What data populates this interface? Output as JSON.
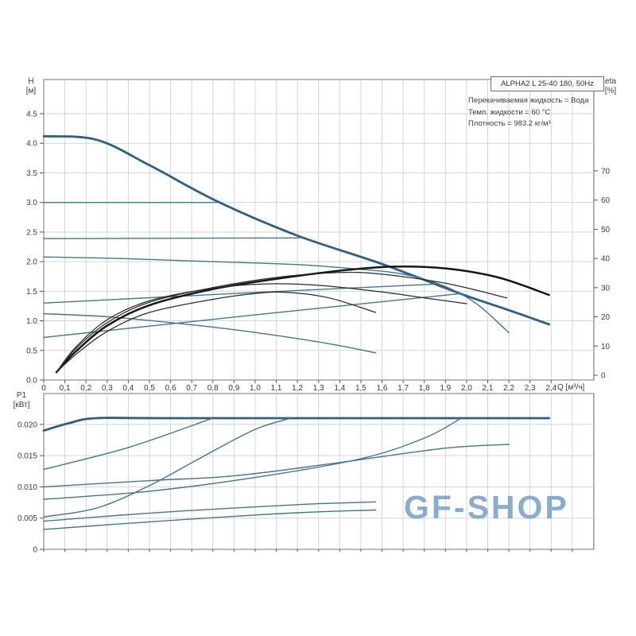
{
  "header": {
    "title": "ALPHA2 L 25-40 180, 50Hz",
    "info": [
      "Перекачиваемая жидкость = Вода",
      "Темп. жидкости = 60 °C",
      "Плотность = 983.2 кг/м³"
    ]
  },
  "axes": {
    "h_label": "H",
    "h_unit": "[м]",
    "eta_label": "eta",
    "eta_unit": "[%]",
    "p1_label": "P1",
    "p1_unit": "[кВт]",
    "q_label": "Q [м³/ч]"
  },
  "watermark": {
    "text": "GF-SHOP"
  },
  "colors": {
    "blue_thick": "#2e6084",
    "blue": "#46748f",
    "black_thick": "#161616",
    "black": "#2b2b2b",
    "grid": "#d5d5d5",
    "border": "#8c8c8c",
    "tick_text": "#3a3a3a",
    "watermark": "#6d9cc7"
  },
  "chart_data": [
    {
      "type": "line",
      "title": "ALPHA2 L 25-40 180, 50Hz",
      "xlabel": "Q [м³/ч]",
      "ylabel": "H [м]",
      "y2label": "eta [%]",
      "xlim": [
        0,
        2.602
      ],
      "ylim": [
        0,
        5.078
      ],
      "y2lim": [
        -1.634,
        101.3
      ],
      "grid": true,
      "x_ticks": [
        0,
        0.1,
        0.2,
        0.3,
        0.4,
        0.5,
        0.6,
        0.7,
        0.8,
        0.9,
        1.0,
        1.1,
        1.2,
        1.3,
        1.4,
        1.5,
        1.6,
        1.7,
        1.8,
        1.9,
        2.0,
        2.1,
        2.2,
        2.3,
        2.4
      ],
      "x_tick_labels": [
        "0",
        "0,1",
        "0,2",
        "0,3",
        "0,4",
        "0,5",
        "0,6",
        "0,7",
        "0,8",
        "0,9",
        "1,0",
        "1,1",
        "1,2",
        "1,3",
        "1,4",
        "1,5",
        "1,6",
        "1,7",
        "1,8",
        "1,9",
        "2,0",
        "2,1",
        "2,2",
        "2,3",
        "2,4"
      ],
      "x_grid_step": 0.1,
      "y_ticks": [
        0,
        0.5,
        1,
        1.5,
        2,
        2.5,
        3,
        3.5,
        4,
        4.5
      ],
      "y_tick_labels": [
        "0.0",
        "0.5",
        "1.0",
        "1.5",
        "2.0",
        "2.5",
        "3.0",
        "3.5",
        "4.0",
        "4.5"
      ],
      "y2_ticks": [
        0,
        10,
        20,
        30,
        40,
        50,
        60,
        70
      ],
      "y2_tick_labels": [
        "0",
        "10",
        "20",
        "30",
        "40",
        "50",
        "60",
        "70"
      ],
      "series": [
        {
          "name": "speed-3-max-curve",
          "axis": "y",
          "style": "blue_thick",
          "points": [
            [
              0,
              4.12
            ],
            [
              0.25,
              4.06
            ],
            [
              0.5,
              3.63
            ],
            [
              0.82,
              3.02
            ],
            [
              1.2,
              2.44
            ],
            [
              1.6,
              1.96
            ],
            [
              1.97,
              1.46
            ],
            [
              2.2,
              1.18
            ],
            [
              2.39,
              0.94
            ]
          ]
        },
        {
          "name": "const-pressure-3.0",
          "axis": "y",
          "style": "blue",
          "points": [
            [
              0,
              3.0
            ],
            [
              0.82,
              3.0
            ]
          ]
        },
        {
          "name": "const-pressure-2.4",
          "axis": "y",
          "style": "blue",
          "points": [
            [
              0,
              2.39
            ],
            [
              1.21,
              2.4
            ]
          ]
        },
        {
          "name": "speed-2-curve",
          "axis": "y",
          "style": "blue",
          "points": [
            [
              0,
              2.08
            ],
            [
              0.4,
              2.05
            ],
            [
              0.8,
              2.0
            ],
            [
              1.2,
              1.95
            ],
            [
              1.5,
              1.87
            ],
            [
              1.7,
              1.79
            ],
            [
              1.9,
              1.58
            ],
            [
              2.05,
              1.28
            ],
            [
              2.2,
              0.8
            ]
          ]
        },
        {
          "name": "prop-pressure-upper",
          "axis": "y",
          "style": "blue",
          "points": [
            [
              0,
              1.3
            ],
            [
              0.95,
              1.47
            ],
            [
              1.85,
              1.62
            ]
          ]
        },
        {
          "name": "speed-1-curve",
          "axis": "y",
          "style": "blue",
          "points": [
            [
              0,
              1.12
            ],
            [
              0.3,
              1.07
            ],
            [
              0.6,
              0.97
            ],
            [
              0.9,
              0.85
            ],
            [
              1.2,
              0.7
            ],
            [
              1.4,
              0.58
            ],
            [
              1.57,
              0.46
            ]
          ]
        },
        {
          "name": "prop-pressure-lower",
          "axis": "y",
          "style": "blue",
          "points": [
            [
              0,
              0.72
            ],
            [
              1.0,
              1.1
            ],
            [
              1.97,
              1.46
            ]
          ]
        },
        {
          "name": "eta-speed-3",
          "axis": "y2",
          "style": "black_thick",
          "points": [
            [
              0.06,
              1
            ],
            [
              0.15,
              8
            ],
            [
              0.3,
              17
            ],
            [
              0.5,
              24
            ],
            [
              0.8,
              29.5
            ],
            [
              1.1,
              33
            ],
            [
              1.4,
              35.8
            ],
            [
              1.65,
              37.2
            ],
            [
              1.9,
              36.6
            ],
            [
              2.15,
              33.5
            ],
            [
              2.39,
              27.5
            ]
          ]
        },
        {
          "name": "eta-speed-2",
          "axis": "y2",
          "style": "black",
          "points": [
            [
              0.06,
              1
            ],
            [
              0.15,
              9
            ],
            [
              0.3,
              18
            ],
            [
              0.5,
              25
            ],
            [
              0.8,
              30
            ],
            [
              1.1,
              33.5
            ],
            [
              1.4,
              35.2
            ],
            [
              1.6,
              34.6
            ],
            [
              1.9,
              31.5
            ],
            [
              2.19,
              26.5
            ]
          ]
        },
        {
          "name": "eta-mid",
          "axis": "y2",
          "style": "black",
          "points": [
            [
              0.06,
              1
            ],
            [
              0.15,
              9.5
            ],
            [
              0.3,
              19
            ],
            [
              0.5,
              25.5
            ],
            [
              0.8,
              29.8
            ],
            [
              1.05,
              31.3
            ],
            [
              1.3,
              30.8
            ],
            [
              1.6,
              28.5
            ],
            [
              1.8,
              26.5
            ],
            [
              2.0,
              24.5
            ]
          ]
        },
        {
          "name": "eta-speed-1",
          "axis": "y2",
          "style": "black",
          "points": [
            [
              0.06,
              1
            ],
            [
              0.15,
              7
            ],
            [
              0.3,
              15
            ],
            [
              0.5,
              21.5
            ],
            [
              0.8,
              26
            ],
            [
              1.0,
              28
            ],
            [
              1.15,
              28.4
            ],
            [
              1.35,
              26.5
            ],
            [
              1.57,
              21.5
            ]
          ]
        }
      ]
    },
    {
      "type": "line",
      "ylabel": "P1 [кВт]",
      "xlim": [
        0,
        2.602
      ],
      "ylim": [
        0,
        0.02494
      ],
      "grid": true,
      "x_grid_step": 0.1,
      "y_ticks": [
        0,
        0.005,
        0.01,
        0.015,
        0.02
      ],
      "y_tick_labels": [
        "0",
        "0.005",
        "0.010",
        "0.015",
        "0.020"
      ],
      "series": [
        {
          "name": "p1-speed-3",
          "axis": "y",
          "style": "blue_thick",
          "points": [
            [
              0,
              0.019
            ],
            [
              0.12,
              0.0202
            ],
            [
              0.25,
              0.021
            ],
            [
              0.6,
              0.021
            ],
            [
              2.39,
              0.021
            ]
          ]
        },
        {
          "name": "p1-const-pressure-3.0",
          "axis": "y",
          "style": "blue",
          "points": [
            [
              0,
              0.0128
            ],
            [
              0.4,
              0.0163
            ],
            [
              0.8,
              0.021
            ]
          ]
        },
        {
          "name": "p1-speed-2",
          "axis": "y",
          "style": "blue",
          "points": [
            [
              0,
              0.01
            ],
            [
              0.5,
              0.011
            ],
            [
              0.91,
              0.0118
            ],
            [
              1.4,
              0.0139
            ],
            [
              1.9,
              0.0162
            ],
            [
              2.2,
              0.0168
            ]
          ]
        },
        {
          "name": "p1-prop-pressure",
          "axis": "y",
          "style": "blue",
          "points": [
            [
              0,
              0.008
            ],
            [
              0.5,
              0.0093
            ],
            [
              1.0,
              0.0115
            ],
            [
              1.5,
              0.0145
            ],
            [
              1.8,
              0.0178
            ],
            [
              1.97,
              0.0209
            ]
          ]
        },
        {
          "name": "p1-const-pressure-2.4",
          "axis": "y",
          "style": "blue",
          "points": [
            [
              0,
              0.0052
            ],
            [
              0.25,
              0.0066
            ],
            [
              0.5,
              0.0102
            ],
            [
              0.75,
              0.0148
            ],
            [
              1.0,
              0.0192
            ],
            [
              1.17,
              0.021
            ]
          ]
        },
        {
          "name": "p1-speed-1",
          "axis": "y",
          "style": "blue",
          "points": [
            [
              0,
              0.0045
            ],
            [
              0.5,
              0.0058
            ],
            [
              1.0,
              0.0068
            ],
            [
              1.3,
              0.0073
            ],
            [
              1.57,
              0.0076
            ]
          ]
        },
        {
          "name": "p1-lowest",
          "axis": "y",
          "style": "blue",
          "points": [
            [
              0,
              0.0032
            ],
            [
              0.5,
              0.0044
            ],
            [
              1.0,
              0.0055
            ],
            [
              1.3,
              0.006
            ],
            [
              1.57,
              0.0063
            ]
          ]
        }
      ]
    }
  ]
}
